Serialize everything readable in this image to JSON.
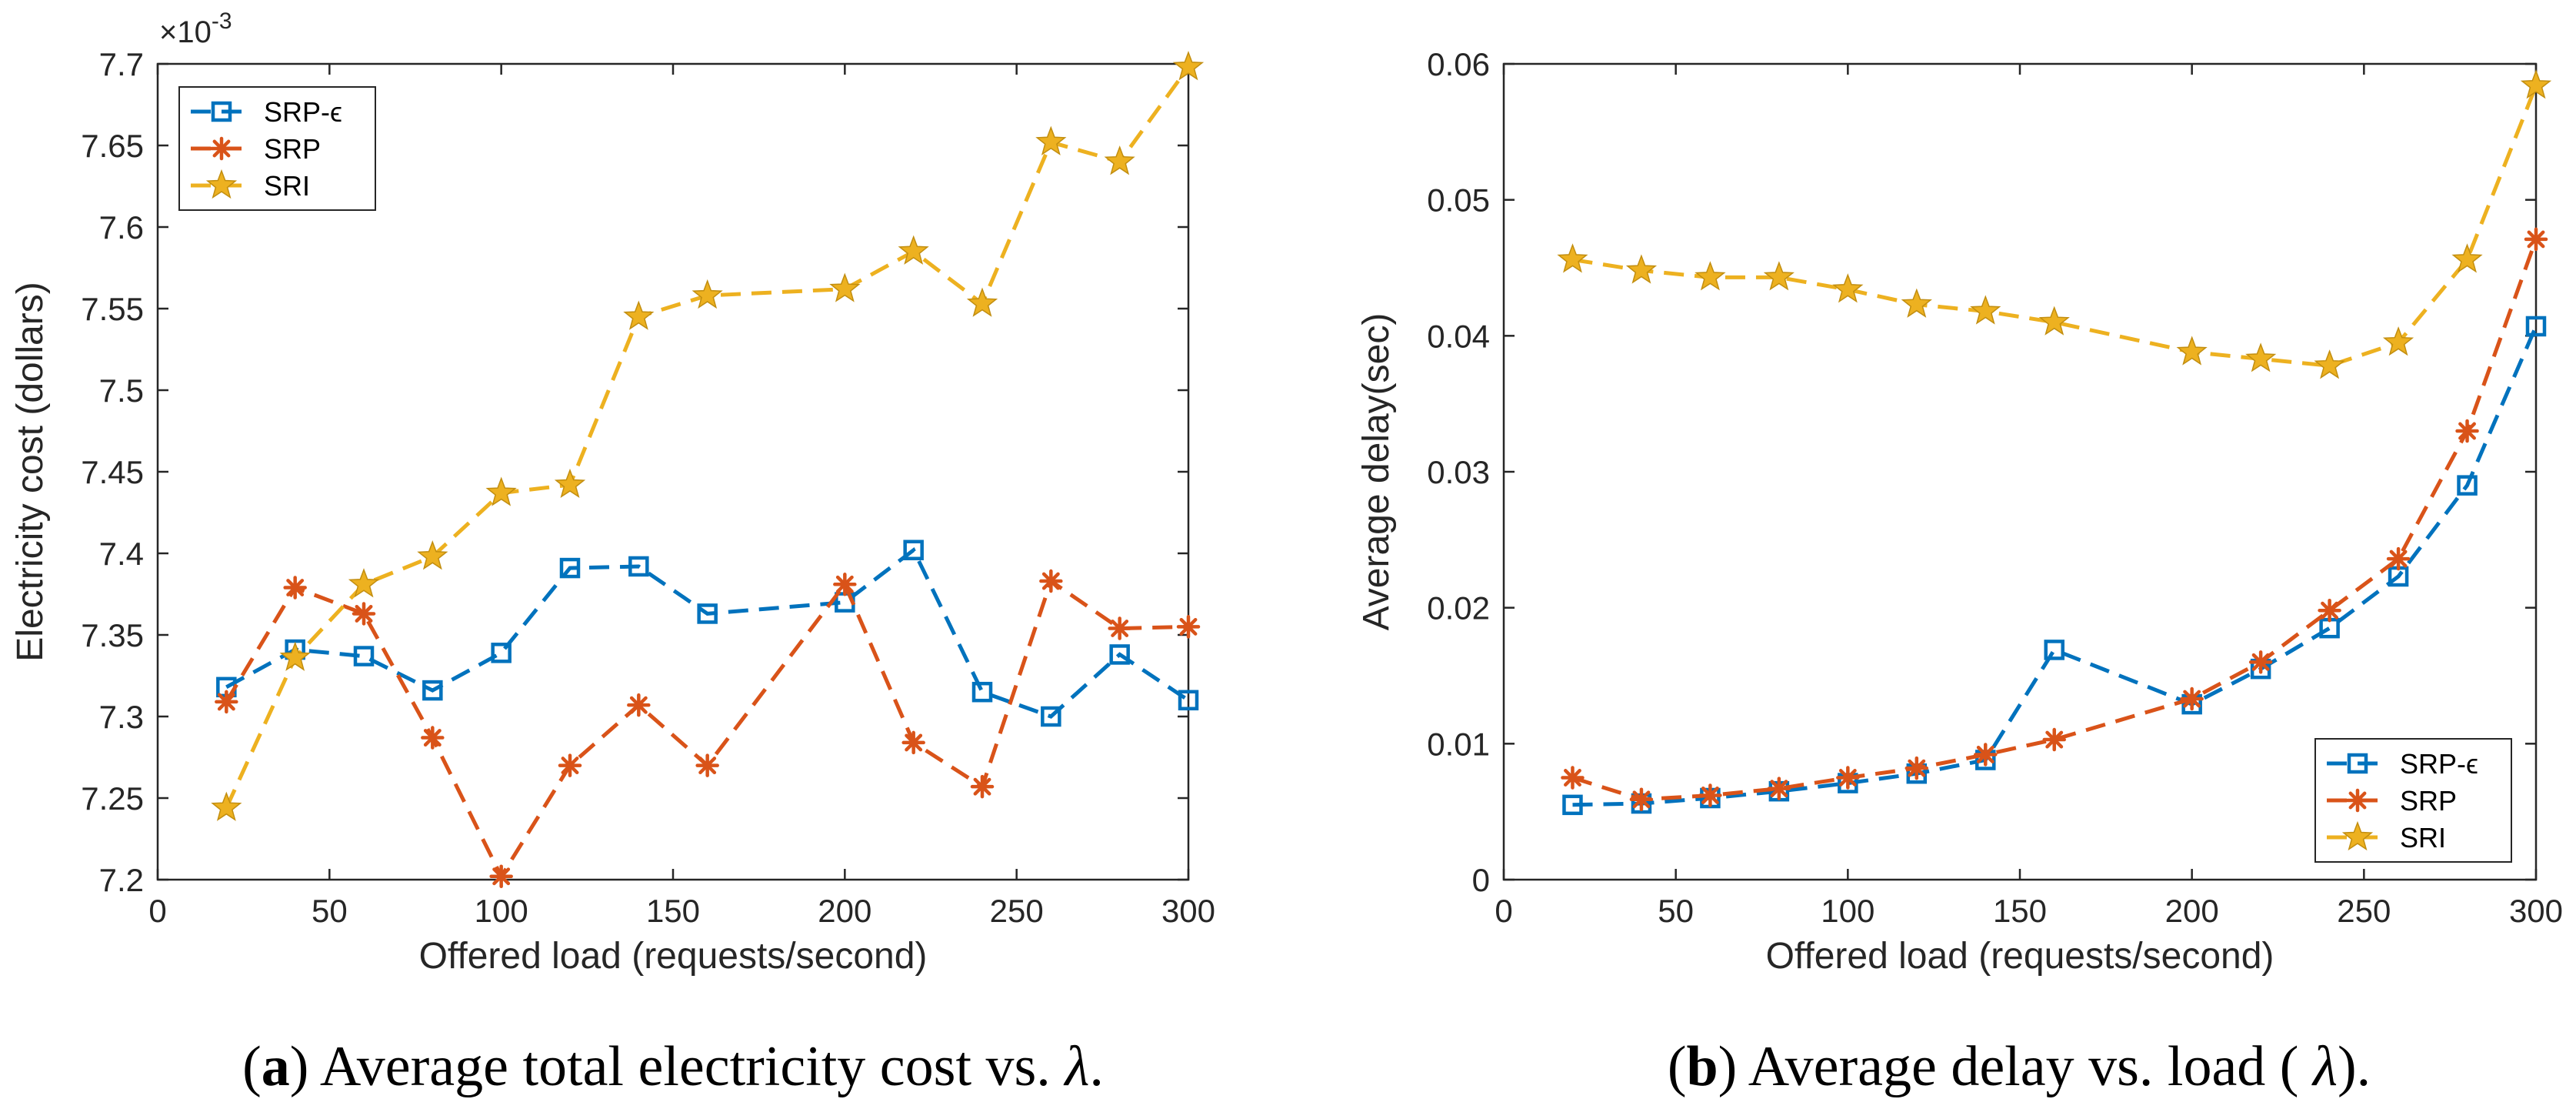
{
  "chart_data": [
    {
      "type": "line",
      "id": "a",
      "xlabel": "Offered load (requests/second)",
      "ylabel": "Electricity cost (dollars)",
      "exponent_base": "×10",
      "exponent_power": "-3",
      "xlim": [
        0,
        300
      ],
      "ylim": [
        7.2,
        7.7
      ],
      "xticks": [
        "0",
        "50",
        "100",
        "150",
        "200",
        "250",
        "300"
      ],
      "xtick_values": [
        0,
        50,
        100,
        150,
        200,
        250,
        300
      ],
      "yticks": [
        "7.2",
        "7.25",
        "7.3",
        "7.35",
        "7.4",
        "7.45",
        "7.5",
        "7.55",
        "7.6",
        "7.65",
        "7.7"
      ],
      "ytick_values": [
        7.2,
        7.25,
        7.3,
        7.35,
        7.4,
        7.45,
        7.5,
        7.55,
        7.6,
        7.65,
        7.7
      ],
      "x": [
        20,
        40,
        60,
        80,
        100,
        120,
        140,
        160,
        200,
        220,
        240,
        260,
        280,
        300
      ],
      "legend_position": "top-left",
      "series": [
        {
          "name": "SRP-ϵ",
          "color": "#0072BD",
          "marker": "square",
          "values": [
            7.318,
            7.341,
            7.337,
            7.316,
            7.339,
            7.391,
            7.392,
            7.363,
            7.37,
            7.402,
            7.315,
            7.3,
            7.338,
            7.31
          ]
        },
        {
          "name": "SRP",
          "color": "#D95319",
          "marker": "asterisk",
          "values": [
            7.309,
            7.379,
            7.363,
            7.287,
            7.202,
            7.27,
            7.307,
            7.27,
            7.381,
            7.284,
            7.257,
            7.383,
            7.354,
            7.355
          ]
        },
        {
          "name": "SRI",
          "color": "#EDB120",
          "marker": "star",
          "values": [
            7.244,
            7.336,
            7.381,
            7.398,
            7.437,
            7.442,
            7.545,
            7.558,
            7.562,
            7.585,
            7.553,
            7.652,
            7.64,
            7.698
          ]
        }
      ],
      "caption_letter": "a",
      "caption_text": "Average total electricity cost vs.",
      "caption_symbol": "λ",
      "caption_end": "."
    },
    {
      "type": "line",
      "id": "b",
      "xlabel": "Offered load (requests/second)",
      "ylabel": "Average delay(sec)",
      "xlim": [
        0,
        300
      ],
      "ylim": [
        0,
        0.06
      ],
      "xticks": [
        "0",
        "50",
        "100",
        "150",
        "200",
        "250",
        "300"
      ],
      "xtick_values": [
        0,
        50,
        100,
        150,
        200,
        250,
        300
      ],
      "yticks": [
        "0",
        "0.01",
        "0.02",
        "0.03",
        "0.04",
        "0.05",
        "0.06"
      ],
      "ytick_values": [
        0,
        0.01,
        0.02,
        0.03,
        0.04,
        0.05,
        0.06
      ],
      "x": [
        20,
        40,
        60,
        80,
        100,
        120,
        140,
        160,
        200,
        220,
        240,
        260,
        280,
        300
      ],
      "legend_position": "bottom-right",
      "series": [
        {
          "name": "SRP-ϵ",
          "color": "#0072BD",
          "marker": "square",
          "values": [
            0.0055,
            0.0056,
            0.006,
            0.0065,
            0.0071,
            0.0078,
            0.0088,
            0.0169,
            0.0129,
            0.0155,
            0.0185,
            0.0223,
            0.029,
            0.0407
          ]
        },
        {
          "name": "SRP",
          "color": "#D95319",
          "marker": "asterisk",
          "values": [
            0.0075,
            0.0059,
            0.0062,
            0.0067,
            0.0075,
            0.0082,
            0.0092,
            0.0103,
            0.0133,
            0.016,
            0.0198,
            0.0236,
            0.033,
            0.0471
          ]
        },
        {
          "name": "SRI",
          "color": "#EDB120",
          "marker": "star",
          "values": [
            0.0456,
            0.0448,
            0.0443,
            0.0443,
            0.0434,
            0.0423,
            0.0418,
            0.041,
            0.0388,
            0.0383,
            0.0378,
            0.0395,
            0.0456,
            0.0584
          ]
        }
      ],
      "caption_letter": "b",
      "caption_text": "Average delay vs. load (",
      "caption_symbol": "λ",
      "caption_end": ")."
    }
  ]
}
